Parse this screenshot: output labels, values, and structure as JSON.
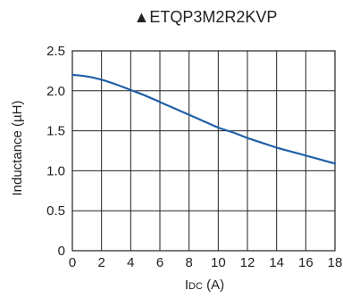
{
  "chart_data": {
    "type": "line",
    "title_marker": "▲",
    "title": "ETQP3M2R2KVP",
    "xlabel_main": "I",
    "xlabel_sub": "DC",
    "xlabel_unit": " (A)",
    "ylabel": "Inductance (µH)",
    "xlim": [
      0,
      18
    ],
    "ylim": [
      0,
      2.5
    ],
    "x_ticks": [
      0,
      2,
      4,
      6,
      8,
      10,
      12,
      14,
      16,
      18
    ],
    "y_ticks": [
      0,
      0.5,
      1.0,
      1.5,
      2.0,
      2.5
    ],
    "x_tick_labels": [
      "0",
      "2",
      "4",
      "6",
      "8",
      "10",
      "12",
      "14",
      "16",
      "18"
    ],
    "y_tick_labels": [
      "0",
      "0.5",
      "1.0",
      "1.5",
      "2.0",
      "2.5"
    ],
    "grid": true,
    "line_color": "#1f5fa8",
    "series": [
      {
        "x": [
          0,
          1,
          2,
          3,
          4,
          5,
          6,
          7,
          8,
          9,
          10,
          11,
          12,
          13,
          14,
          15,
          16,
          17,
          18
        ],
        "y": [
          2.2,
          2.18,
          2.14,
          2.08,
          2.01,
          1.94,
          1.86,
          1.78,
          1.7,
          1.62,
          1.54,
          1.48,
          1.41,
          1.35,
          1.29,
          1.24,
          1.19,
          1.14,
          1.09
        ]
      }
    ]
  }
}
